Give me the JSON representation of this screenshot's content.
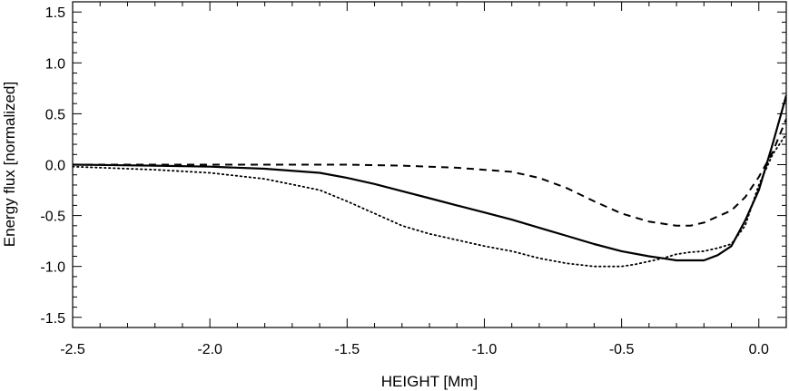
{
  "chart_data": {
    "type": "line",
    "xlabel": "HEIGHT [Mm]",
    "ylabel": "Energy flux [normalized]",
    "xlim": [
      -2.5,
      0.1
    ],
    "ylim": [
      -1.6,
      1.6
    ],
    "xticks": [
      -2.5,
      -2.0,
      -1.5,
      -1.0,
      -0.5,
      0.0
    ],
    "xtick_labels": [
      "-2.5",
      "-2.0",
      "-1.5",
      "-1.0",
      "-0.5",
      "0.0"
    ],
    "yticks": [
      1.5,
      1.0,
      0.5,
      0.0,
      -0.5,
      -1.0,
      -1.5
    ],
    "ytick_labels": [
      "1.5",
      "1.0",
      "0.5",
      "0.0",
      "-0.5",
      "-1.0",
      "-1.5"
    ],
    "grid": false,
    "series": [
      {
        "style": "solid",
        "x": [
          -2.5,
          -2.2,
          -2.0,
          -1.8,
          -1.6,
          -1.5,
          -1.4,
          -1.3,
          -1.2,
          -1.1,
          -1.0,
          -0.9,
          -0.8,
          -0.7,
          -0.6,
          -0.5,
          -0.4,
          -0.35,
          -0.3,
          -0.25,
          -0.2,
          -0.15,
          -0.1,
          -0.05,
          0.0,
          0.05,
          0.1
        ],
        "y": [
          0.0,
          -0.01,
          -0.02,
          -0.04,
          -0.08,
          -0.13,
          -0.19,
          -0.26,
          -0.33,
          -0.4,
          -0.47,
          -0.54,
          -0.62,
          -0.7,
          -0.78,
          -0.85,
          -0.9,
          -0.92,
          -0.94,
          -0.94,
          -0.94,
          -0.89,
          -0.8,
          -0.55,
          -0.25,
          0.2,
          0.68
        ]
      },
      {
        "style": "dashed",
        "x": [
          -2.5,
          -2.0,
          -1.5,
          -1.3,
          -1.1,
          -0.9,
          -0.8,
          -0.7,
          -0.6,
          -0.5,
          -0.4,
          -0.3,
          -0.25,
          -0.2,
          -0.1,
          -0.05,
          0.0,
          0.05,
          0.1
        ],
        "y": [
          0.0,
          0.0,
          0.0,
          -0.01,
          -0.03,
          -0.07,
          -0.13,
          -0.23,
          -0.36,
          -0.48,
          -0.56,
          -0.6,
          -0.6,
          -0.57,
          -0.45,
          -0.32,
          -0.12,
          0.12,
          0.45
        ]
      },
      {
        "style": "dotted",
        "x": [
          -2.5,
          -2.2,
          -2.0,
          -1.8,
          -1.6,
          -1.5,
          -1.4,
          -1.3,
          -1.2,
          -1.1,
          -1.0,
          -0.9,
          -0.8,
          -0.7,
          -0.6,
          -0.55,
          -0.5,
          -0.45,
          -0.4,
          -0.35,
          -0.3,
          -0.25,
          -0.2,
          -0.15,
          -0.1,
          -0.05,
          0.0,
          0.05,
          0.1
        ],
        "y": [
          -0.02,
          -0.05,
          -0.08,
          -0.14,
          -0.25,
          -0.36,
          -0.48,
          -0.6,
          -0.68,
          -0.74,
          -0.8,
          -0.85,
          -0.92,
          -0.97,
          -1.0,
          -1.0,
          -1.0,
          -0.98,
          -0.95,
          -0.92,
          -0.88,
          -0.86,
          -0.85,
          -0.82,
          -0.78,
          -0.6,
          -0.2,
          0.1,
          0.3
        ]
      }
    ]
  }
}
